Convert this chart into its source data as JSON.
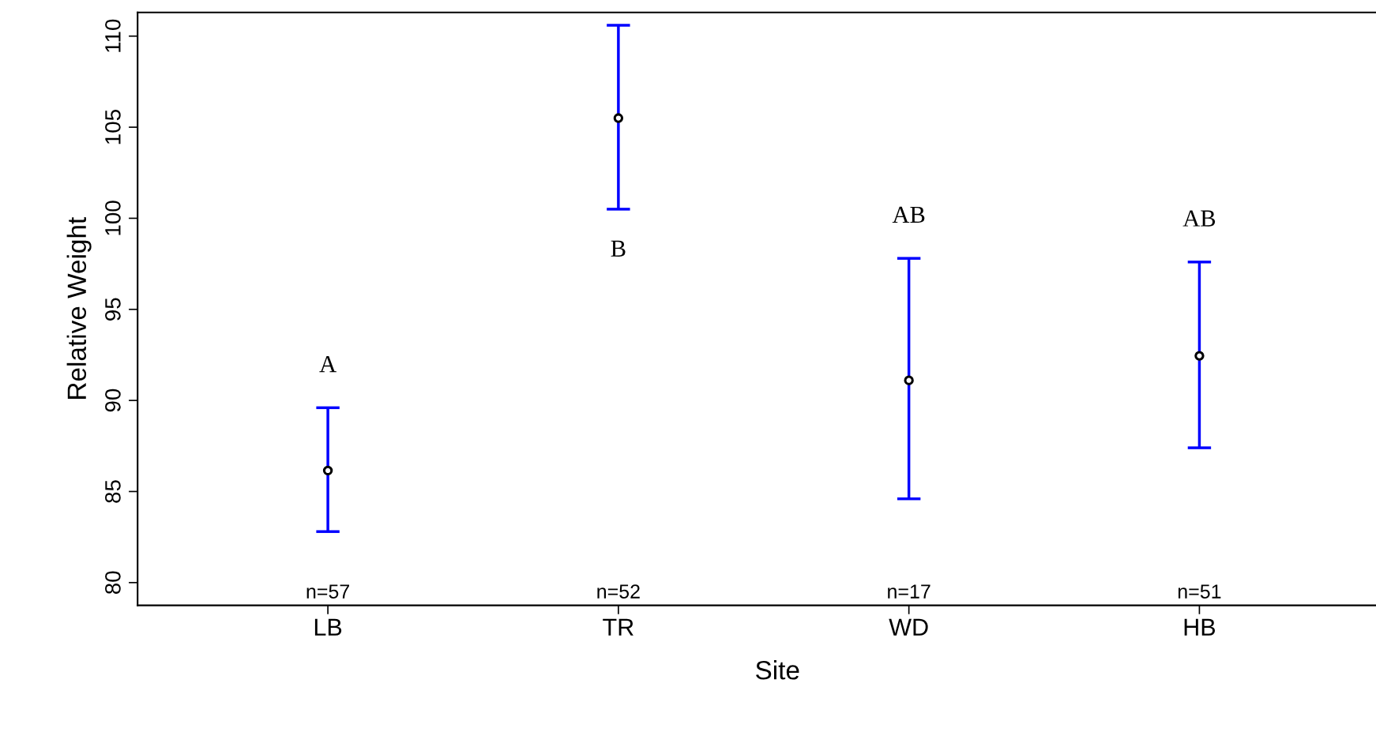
{
  "chart_data": {
    "type": "scatter",
    "xlabel": "Site",
    "ylabel": "Relative Weight",
    "categories": [
      "LB",
      "TR",
      "WD",
      "HB"
    ],
    "series": [
      {
        "color": "#000000",
        "values": [
          86.15,
          105.5,
          91.1,
          92.45
        ],
        "errors": [
          [
            82.8,
            89.6
          ],
          [
            100.5,
            110.6
          ],
          [
            84.6,
            97.8
          ],
          [
            87.4,
            97.6
          ]
        ]
      }
    ],
    "marker": "circle",
    "ylim": [
      78.75,
      111.3
    ],
    "yticks": [
      80,
      85,
      90,
      95,
      100,
      105,
      110
    ],
    "grid": false,
    "legend": false,
    "annotations": [
      "A",
      "B",
      "AB",
      "AB",
      "n=57",
      "n=52",
      "n=17",
      "n=51"
    ]
  }
}
